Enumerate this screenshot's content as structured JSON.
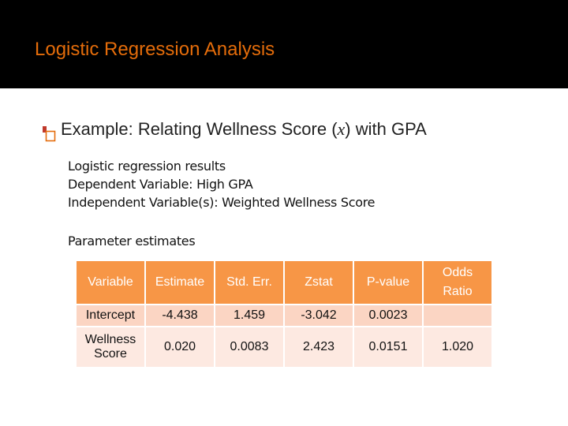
{
  "slide": {
    "title": "Logistic Regression Analysis",
    "example": {
      "prefix": "Example: Relating  Wellness Score (",
      "variable": "x",
      "suffix": ") with GPA"
    },
    "results_lines": [
      "Logistic regression results",
      "Dependent Variable: High GPA",
      "Independent Variable(s): Weighted Wellness Score"
    ],
    "parameter_heading": "Parameter estimates"
  },
  "table": {
    "headers": [
      "Variable",
      "Estimate",
      "Std. Err.",
      "Zstat",
      "P-value",
      "Odds",
      "Ratio"
    ],
    "rows": [
      {
        "variable": "Intercept",
        "estimate": "-4.438",
        "std_err": "1.459",
        "zstat": "-3.042",
        "p_value": "0.0023",
        "odds_ratio": ""
      },
      {
        "variable_line1": "Wellness",
        "variable_line2": "Score",
        "estimate": "0.020",
        "std_err": "0.0083",
        "zstat": "2.423",
        "p_value": "0.0151",
        "odds_ratio": "1.020"
      }
    ]
  },
  "colors": {
    "header_background": "#000000",
    "title_color": "#e46c0a",
    "table_header": "#f79646",
    "table_row_odd": "#fbd5c3",
    "table_row_even": "#fde9e1"
  },
  "icons": {
    "bullet": "checkbox-bullet-icon"
  }
}
